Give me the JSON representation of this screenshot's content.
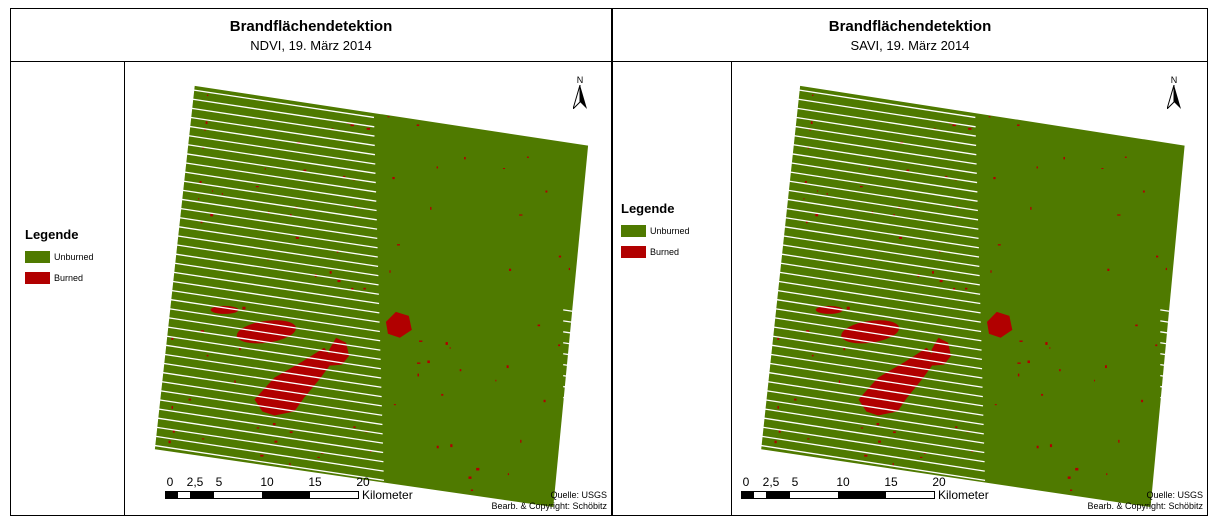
{
  "colors": {
    "unburned": "#4f7a00",
    "burned": "#b10000",
    "stripe": "#ffffff"
  },
  "panels": [
    {
      "id": "ndvi",
      "title": "Brandflächendetektion",
      "subtitle": "NDVI, 19. März 2014",
      "legend": {
        "title": "Legende",
        "items": [
          {
            "label": "Unburned",
            "color": "#4f7a00"
          },
          {
            "label": "Burned",
            "color": "#b10000"
          }
        ]
      },
      "north": "N",
      "scale": {
        "ticks": [
          "0",
          "2,5",
          "5",
          "10",
          "15",
          "20"
        ],
        "unit": "Kilometer"
      },
      "credit": {
        "source": "Quelle: USGS",
        "author": "Bearb. & Copyright: Schöbitz"
      }
    },
    {
      "id": "savi",
      "title": "Brandflächendetektion",
      "subtitle": "SAVI, 19. März 2014",
      "legend": {
        "title": "Legende",
        "items": [
          {
            "label": "Unburned",
            "color": "#4f7a00"
          },
          {
            "label": "Burned",
            "color": "#b10000"
          }
        ]
      },
      "north": "N",
      "scale": {
        "ticks": [
          "0",
          "2,5",
          "5",
          "10",
          "15",
          "20"
        ],
        "unit": "Kilometer"
      },
      "credit": {
        "source": "Quelle: USGS",
        "author": "Bearb. & Copyright: Schöbitz"
      }
    }
  ]
}
